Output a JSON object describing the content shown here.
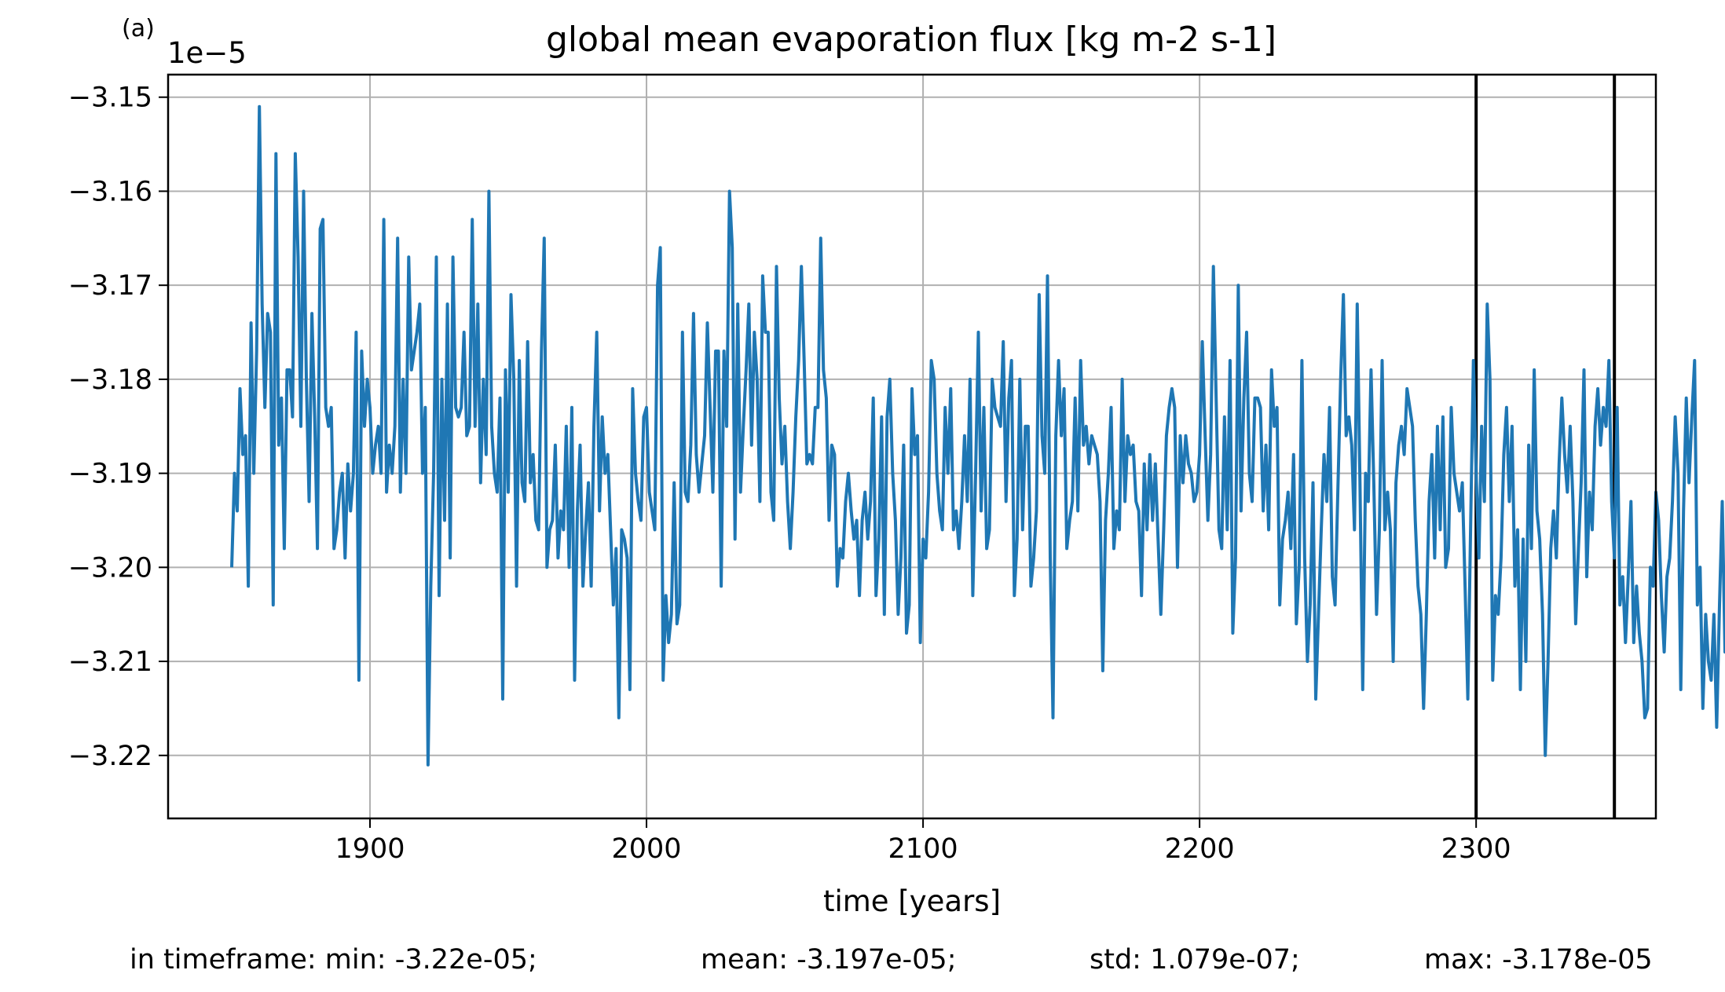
{
  "panel_label": "(a)",
  "stats": {
    "min": "in timeframe: min: -3.22e-05;",
    "mean": "mean: -3.197e-05;",
    "std": "std: 1.079e-07;",
    "max": "max: -3.178e-05"
  },
  "chart_data": {
    "type": "line",
    "title": "global mean evaporation flux [kg m-2 s-1]",
    "xlabel": "time [years]",
    "ylabel": "",
    "offset_label": "1e−5",
    "xlim": [
      1827,
      2365
    ],
    "ylim": [
      -3.2267,
      -3.1476
    ],
    "x_ticks": [
      1900,
      2000,
      2100,
      2200,
      2300
    ],
    "x_tick_labels": [
      "1900",
      "2000",
      "2100",
      "2200",
      "2300"
    ],
    "y_ticks": [
      -3.15,
      -3.16,
      -3.17,
      -3.18,
      -3.19,
      -3.2,
      -3.21,
      -3.22
    ],
    "y_tick_labels": [
      "−3.15",
      "−3.16",
      "−3.17",
      "−3.18",
      "−3.19",
      "−3.20",
      "−3.21",
      "−3.22"
    ],
    "grid": true,
    "vertical_lines": [
      2300,
      2350
    ],
    "series_color": "#1f77b4",
    "x_start": 1850,
    "x_step": 1,
    "series": [
      {
        "values": [
          -3.2,
          -3.19,
          -3.194,
          -3.181,
          -3.188,
          -3.186,
          -3.202,
          -3.174,
          -3.19,
          -3.177,
          -3.151,
          -3.172,
          -3.183,
          -3.173,
          -3.175,
          -3.204,
          -3.156,
          -3.187,
          -3.182,
          -3.198,
          -3.179,
          -3.179,
          -3.184,
          -3.156,
          -3.167,
          -3.185,
          -3.16,
          -3.18,
          -3.193,
          -3.173,
          -3.184,
          -3.198,
          -3.164,
          -3.163,
          -3.183,
          -3.185,
          -3.183,
          -3.198,
          -3.196,
          -3.192,
          -3.19,
          -3.199,
          -3.189,
          -3.194,
          -3.19,
          -3.175,
          -3.212,
          -3.177,
          -3.185,
          -3.18,
          -3.183,
          -3.19,
          -3.187,
          -3.185,
          -3.19,
          -3.163,
          -3.192,
          -3.187,
          -3.19,
          -3.185,
          -3.165,
          -3.192,
          -3.18,
          -3.19,
          -3.167,
          -3.179,
          -3.177,
          -3.175,
          -3.172,
          -3.19,
          -3.183,
          -3.221,
          -3.202,
          -3.19,
          -3.167,
          -3.203,
          -3.18,
          -3.195,
          -3.172,
          -3.199,
          -3.167,
          -3.183,
          -3.184,
          -3.183,
          -3.175,
          -3.186,
          -3.185,
          -3.163,
          -3.185,
          -3.172,
          -3.191,
          -3.18,
          -3.188,
          -3.16,
          -3.185,
          -3.19,
          -3.192,
          -3.182,
          -3.214,
          -3.179,
          -3.192,
          -3.171,
          -3.18,
          -3.202,
          -3.178,
          -3.191,
          -3.193,
          -3.176,
          -3.191,
          -3.188,
          -3.195,
          -3.196,
          -3.177,
          -3.165,
          -3.2,
          -3.196,
          -3.195,
          -3.187,
          -3.199,
          -3.194,
          -3.196,
          -3.185,
          -3.2,
          -3.183,
          -3.212,
          -3.194,
          -3.187,
          -3.202,
          -3.196,
          -3.191,
          -3.202,
          -3.185,
          -3.175,
          -3.194,
          -3.184,
          -3.19,
          -3.188,
          -3.196,
          -3.204,
          -3.198,
          -3.216,
          -3.196,
          -3.197,
          -3.199,
          -3.213,
          -3.181,
          -3.19,
          -3.193,
          -3.195,
          -3.184,
          -3.183,
          -3.192,
          -3.194,
          -3.196,
          -3.17,
          -3.166,
          -3.212,
          -3.203,
          -3.208,
          -3.205,
          -3.191,
          -3.206,
          -3.204,
          -3.175,
          -3.192,
          -3.193,
          -3.187,
          -3.173,
          -3.188,
          -3.192,
          -3.189,
          -3.186,
          -3.174,
          -3.183,
          -3.192,
          -3.177,
          -3.177,
          -3.202,
          -3.177,
          -3.185,
          -3.16,
          -3.166,
          -3.197,
          -3.172,
          -3.192,
          -3.185,
          -3.179,
          -3.172,
          -3.187,
          -3.175,
          -3.18,
          -3.193,
          -3.169,
          -3.175,
          -3.175,
          -3.192,
          -3.195,
          -3.168,
          -3.182,
          -3.189,
          -3.185,
          -3.193,
          -3.198,
          -3.192,
          -3.184,
          -3.178,
          -3.168,
          -3.178,
          -3.189,
          -3.188,
          -3.189,
          -3.183,
          -3.183,
          -3.165,
          -3.179,
          -3.182,
          -3.195,
          -3.187,
          -3.188,
          -3.202,
          -3.198,
          -3.199,
          -3.193,
          -3.19,
          -3.194,
          -3.197,
          -3.195,
          -3.203,
          -3.195,
          -3.192,
          -3.197,
          -3.193,
          -3.182,
          -3.203,
          -3.197,
          -3.184,
          -3.205,
          -3.184,
          -3.18,
          -3.19,
          -3.195,
          -3.205,
          -3.199,
          -3.187,
          -3.207,
          -3.204,
          -3.181,
          -3.188,
          -3.186,
          -3.208,
          -3.197,
          -3.199,
          -3.192,
          -3.178,
          -3.18,
          -3.19,
          -3.194,
          -3.196,
          -3.183,
          -3.19,
          -3.181,
          -3.196,
          -3.194,
          -3.198,
          -3.193,
          -3.186,
          -3.193,
          -3.18,
          -3.203,
          -3.19,
          -3.175,
          -3.194,
          -3.183,
          -3.198,
          -3.196,
          -3.18,
          -3.183,
          -3.184,
          -3.185,
          -3.176,
          -3.193,
          -3.182,
          -3.178,
          -3.203,
          -3.197,
          -3.18,
          -3.196,
          -3.185,
          -3.185,
          -3.202,
          -3.199,
          -3.194,
          -3.171,
          -3.186,
          -3.19,
          -3.169,
          -3.199,
          -3.216,
          -3.186,
          -3.178,
          -3.186,
          -3.181,
          -3.198,
          -3.195,
          -3.193,
          -3.182,
          -3.194,
          -3.178,
          -3.187,
          -3.185,
          -3.189,
          -3.186,
          -3.187,
          -3.188,
          -3.193,
          -3.211,
          -3.195,
          -3.19,
          -3.183,
          -3.198,
          -3.194,
          -3.196,
          -3.18,
          -3.193,
          -3.186,
          -3.188,
          -3.187,
          -3.193,
          -3.194,
          -3.203,
          -3.189,
          -3.196,
          -3.188,
          -3.195,
          -3.189,
          -3.197,
          -3.205,
          -3.196,
          -3.186,
          -3.183,
          -3.181,
          -3.183,
          -3.2,
          -3.186,
          -3.191,
          -3.186,
          -3.189,
          -3.19,
          -3.193,
          -3.192,
          -3.188,
          -3.176,
          -3.186,
          -3.195,
          -3.188,
          -3.168,
          -3.182,
          -3.196,
          -3.198,
          -3.184,
          -3.196,
          -3.178,
          -3.207,
          -3.199,
          -3.17,
          -3.194,
          -3.182,
          -3.175,
          -3.19,
          -3.193,
          -3.182,
          -3.182,
          -3.183,
          -3.194,
          -3.187,
          -3.196,
          -3.179,
          -3.185,
          -3.183,
          -3.204,
          -3.197,
          -3.195,
          -3.192,
          -3.198,
          -3.188,
          -3.206,
          -3.2,
          -3.178,
          -3.199,
          -3.21,
          -3.204,
          -3.191,
          -3.214,
          -3.205,
          -3.196,
          -3.188,
          -3.193,
          -3.183,
          -3.201,
          -3.204,
          -3.192,
          -3.18,
          -3.171,
          -3.186,
          -3.184,
          -3.187,
          -3.196,
          -3.172,
          -3.191,
          -3.213,
          -3.19,
          -3.193,
          -3.179,
          -3.191,
          -3.205,
          -3.196,
          -3.178,
          -3.196,
          -3.192,
          -3.196,
          -3.21,
          -3.191,
          -3.187,
          -3.185,
          -3.188,
          -3.181,
          -3.183,
          -3.185,
          -3.195,
          -3.202,
          -3.205,
          -3.215,
          -3.205,
          -3.193,
          -3.188,
          -3.199,
          -3.185,
          -3.196,
          -3.184,
          -3.2,
          -3.198,
          -3.183,
          -3.19,
          -3.192,
          -3.194,
          -3.191,
          -3.202,
          -3.214,
          -3.196,
          -3.178,
          -3.19,
          -3.199,
          -3.185,
          -3.193,
          -3.172,
          -3.18,
          -3.212,
          -3.203,
          -3.205,
          -3.199,
          -3.188,
          -3.183,
          -3.193,
          -3.185,
          -3.202,
          -3.196,
          -3.213,
          -3.197,
          -3.21,
          -3.187,
          -3.198,
          -3.179,
          -3.194,
          -3.197,
          -3.205,
          -3.22,
          -3.21,
          -3.198,
          -3.194,
          -3.199,
          -3.189,
          -3.182,
          -3.188,
          -3.192,
          -3.185,
          -3.193,
          -3.206,
          -3.198,
          -3.191,
          -3.179,
          -3.201,
          -3.192,
          -3.196,
          -3.185,
          -3.181,
          -3.187,
          -3.183,
          -3.185,
          -3.178,
          -3.193,
          -3.199,
          -3.183,
          -3.204,
          -3.201,
          -3.208,
          -3.201,
          -3.193,
          -3.208,
          -3.202,
          -3.207,
          -3.21,
          -3.216,
          -3.215,
          -3.2,
          -3.202,
          -3.192,
          -3.195,
          -3.203,
          -3.209,
          -3.201,
          -3.199,
          -3.193,
          -3.184,
          -3.19,
          -3.213,
          -3.194,
          -3.182,
          -3.191,
          -3.184,
          -3.178,
          -3.204,
          -3.2,
          -3.215,
          -3.205,
          -3.21,
          -3.212,
          -3.205,
          -3.217,
          -3.204,
          -3.193,
          -3.209,
          -3.2,
          -3.205,
          -3.203,
          -3.199,
          -3.196,
          -3.202,
          -3.19,
          -3.192
        ]
      }
    ]
  }
}
